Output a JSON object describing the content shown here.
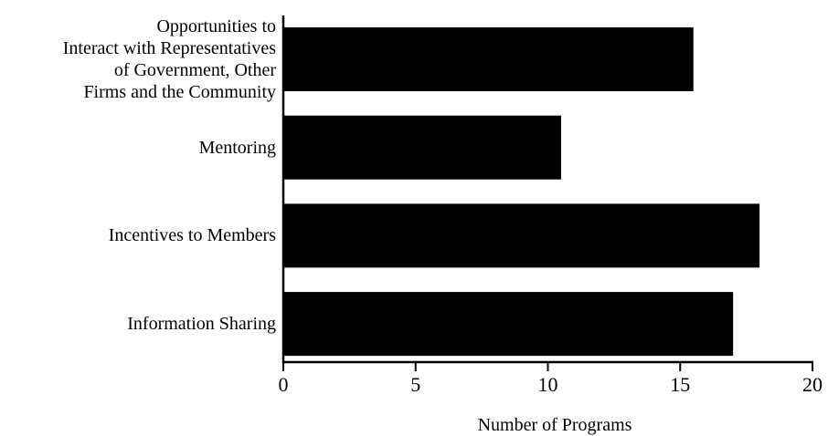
{
  "chart_data": {
    "type": "barh",
    "categories": [
      "Opportunities to\nInteract with Representatives\nof Government, Other\nFirms and the Community",
      "Mentoring",
      "Incentives to Members",
      "Information Sharing"
    ],
    "values": [
      15.5,
      10.5,
      18,
      17
    ],
    "color": "#000000",
    "xlabel": "Number of Programs",
    "xlim": [
      0,
      20
    ],
    "xticks": [
      0,
      5,
      10,
      15,
      20
    ],
    "grid": false
  }
}
